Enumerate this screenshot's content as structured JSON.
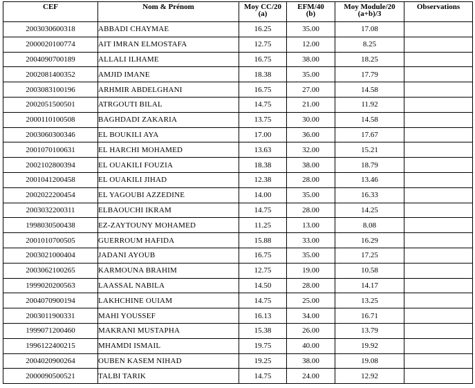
{
  "header": {
    "cef": "CEF",
    "name": "Nom & Prénom",
    "cc_line1": "Moy CC/20",
    "cc_line2": "(a)",
    "efm_line1": "EFM/40",
    "efm_line2": "(b)",
    "module_line1": "Moy Module/20",
    "module_line2": "(a+b)/3",
    "observations": "Observations"
  },
  "rows": [
    {
      "cef": "2003030600318",
      "name": "ABBADI CHAYMAE",
      "cc": "16.25",
      "efm": "35.00",
      "module": "17.08",
      "obs": ""
    },
    {
      "cef": "2000020100774",
      "name": "AIT IMRAN ELMOSTAFA",
      "cc": "12.75",
      "efm": "12.00",
      "module": "8.25",
      "obs": ""
    },
    {
      "cef": "2004090700189",
      "name": "ALLALI ILHAME",
      "cc": "16.75",
      "efm": "38.00",
      "module": "18.25",
      "obs": ""
    },
    {
      "cef": "2002081400352",
      "name": "AMJID IMANE",
      "cc": "18.38",
      "efm": "35.00",
      "module": "17.79",
      "obs": ""
    },
    {
      "cef": "2003083100196",
      "name": "ARHMIR ABDELGHANI",
      "cc": "16.75",
      "efm": "27.00",
      "module": "14.58",
      "obs": ""
    },
    {
      "cef": "2002051500501",
      "name": "ATRGOUTI BILAL",
      "cc": "14.75",
      "efm": "21.00",
      "module": "11.92",
      "obs": ""
    },
    {
      "cef": "2000110100508",
      "name": "BAGHDADI ZAKARIA",
      "cc": "13.75",
      "efm": "30.00",
      "module": "14.58",
      "obs": ""
    },
    {
      "cef": "2003060300346",
      "name": "EL BOUKILI AYA",
      "cc": "17.00",
      "efm": "36.00",
      "module": "17.67",
      "obs": ""
    },
    {
      "cef": "2001070100631",
      "name": "EL HARCHI MOHAMED",
      "cc": "13.63",
      "efm": "32.00",
      "module": "15.21",
      "obs": ""
    },
    {
      "cef": "2002102800394",
      "name": "EL OUAKILI FOUZIA",
      "cc": "18.38",
      "efm": "38.00",
      "module": "18.79",
      "obs": ""
    },
    {
      "cef": "2001041200458",
      "name": "EL OUAKILI JIHAD",
      "cc": "12.38",
      "efm": "28.00",
      "module": "13.46",
      "obs": ""
    },
    {
      "cef": "2002022200454",
      "name": "EL YAGOUBI AZZEDINE",
      "cc": "14.00",
      "efm": "35.00",
      "module": "16.33",
      "obs": ""
    },
    {
      "cef": "2003032200311",
      "name": "ELBAOUCHI IKRAM",
      "cc": "14.75",
      "efm": "28.00",
      "module": "14.25",
      "obs": ""
    },
    {
      "cef": "1998030500438",
      "name": "EZ-ZAYTOUNY MOHAMED",
      "cc": "11.25",
      "efm": "13.00",
      "module": "8.08",
      "obs": ""
    },
    {
      "cef": "2001010700505",
      "name": "GUERROUM HAFIDA",
      "cc": "15.88",
      "efm": "33.00",
      "module": "16.29",
      "obs": ""
    },
    {
      "cef": "2003021000404",
      "name": "JADANI AYOUB",
      "cc": "16.75",
      "efm": "35.00",
      "module": "17.25",
      "obs": ""
    },
    {
      "cef": "2003062100265",
      "name": "KARMOUNA BRAHIM",
      "cc": "12.75",
      "efm": "19.00",
      "module": "10.58",
      "obs": ""
    },
    {
      "cef": "1999020200563",
      "name": "LAASSAL NABILA",
      "cc": "14.50",
      "efm": "28.00",
      "module": "14.17",
      "obs": ""
    },
    {
      "cef": "2004070900194",
      "name": "LAKHCHINE OUIAM",
      "cc": "14.75",
      "efm": "25.00",
      "module": "13.25",
      "obs": ""
    },
    {
      "cef": "2003011900331",
      "name": "MAHI YOUSSEF",
      "cc": "16.13",
      "efm": "34.00",
      "module": "16.71",
      "obs": ""
    },
    {
      "cef": "1999071200460",
      "name": "MAKRANI MUSTAPHA",
      "cc": "15.38",
      "efm": "26.00",
      "module": "13.79",
      "obs": ""
    },
    {
      "cef": "1996122400215",
      "name": "MHAMDI ISMAIL",
      "cc": "19.75",
      "efm": "40.00",
      "module": "19.92",
      "obs": ""
    },
    {
      "cef": "2004020900264",
      "name": "OUBEN KASEM NIHAD",
      "cc": "19.25",
      "efm": "38.00",
      "module": "19.08",
      "obs": ""
    },
    {
      "cef": "2000090500521",
      "name": "TALBI TARIK",
      "cc": "14.75",
      "efm": "24.00",
      "module": "12.92",
      "obs": ""
    }
  ]
}
